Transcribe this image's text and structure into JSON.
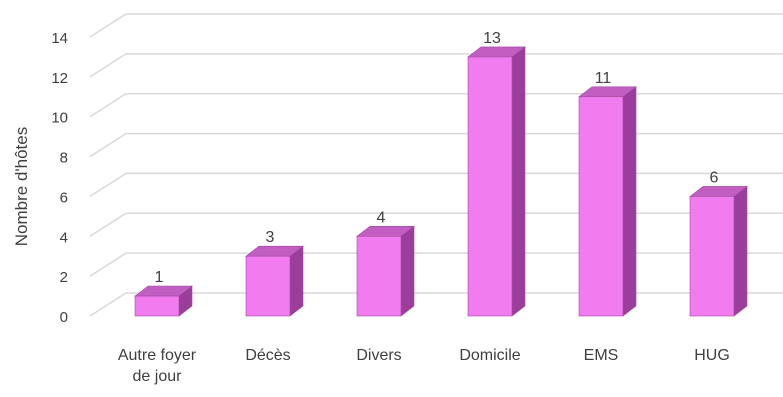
{
  "chart_data": {
    "type": "bar",
    "style": "3d-column",
    "categories": [
      "Autre foyer de jour",
      "Décès",
      "Divers",
      "Domicile",
      "EMS",
      "HUG"
    ],
    "category_lines": [
      [
        "Autre foyer",
        "de jour"
      ],
      [
        "Décès"
      ],
      [
        "Divers"
      ],
      [
        "Domicile"
      ],
      [
        "EMS"
      ],
      [
        "HUG"
      ]
    ],
    "values": [
      1,
      3,
      4,
      13,
      11,
      6
    ],
    "data_labels": [
      "1",
      "3",
      "4",
      "13",
      "11",
      "6"
    ],
    "title": "",
    "xlabel": "",
    "ylabel": "Nombre d'hôtes",
    "ylim": [
      0,
      14
    ],
    "yticks": [
      "0",
      "2",
      "4",
      "6",
      "8",
      "10",
      "12",
      "14"
    ],
    "grid": true,
    "legend": "none",
    "colors": {
      "bar_front": "#f07cf0",
      "bar_top": "#c25ec2",
      "bar_side": "#9b3e9b",
      "bar_outline": "#a04aa0",
      "grid": "#d9d9d9",
      "text": "#404040"
    }
  }
}
